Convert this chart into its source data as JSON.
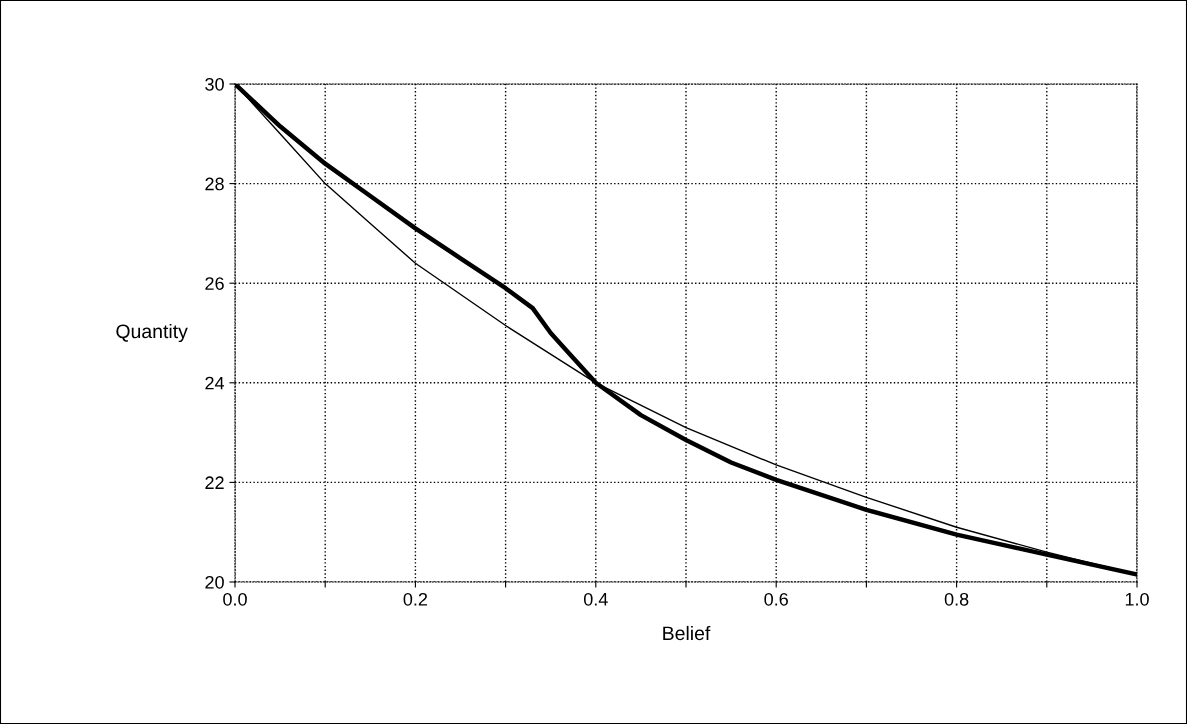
{
  "chart_data": {
    "type": "line",
    "xlabel": "Belief",
    "ylabel": "Quantity",
    "xlim": [
      0,
      1
    ],
    "ylim": [
      20,
      30
    ],
    "xticks": [
      {
        "value": 0,
        "label": "0.0"
      },
      {
        "value": 0.1,
        "label": null
      },
      {
        "value": 0.2,
        "label": "0.2"
      },
      {
        "value": 0.3,
        "label": null
      },
      {
        "value": 0.4,
        "label": "0.4"
      },
      {
        "value": 0.5,
        "label": null
      },
      {
        "value": 0.6,
        "label": "0.6"
      },
      {
        "value": 0.7,
        "label": null
      },
      {
        "value": 0.8,
        "label": "0.8"
      },
      {
        "value": 0.9,
        "label": null
      },
      {
        "value": 1,
        "label": "1.0"
      }
    ],
    "yticks": [
      20,
      22,
      24,
      26,
      28,
      30
    ],
    "grid": true,
    "marker": "none",
    "line_style": "solid",
    "series": [
      {
        "color": "#000000",
        "x": [
          0,
          0.05,
          0.1,
          0.15,
          0.2,
          0.25,
          0.3,
          0.33,
          0.35,
          0.37,
          0.4,
          0.45,
          0.5,
          0.55,
          0.6,
          0.7,
          0.8,
          0.9,
          1.0
        ],
        "values": [
          30,
          29.15,
          28.4,
          27.75,
          27.1,
          26.5,
          25.9,
          25.5,
          25.0,
          24.6,
          24.0,
          23.35,
          22.85,
          22.4,
          22.05,
          21.45,
          20.95,
          20.55,
          20.15
        ]
      },
      {
        "color": "#000000",
        "x": [
          0,
          0.05,
          0.1,
          0.15,
          0.2,
          0.3,
          0.4,
          0.5,
          0.6,
          0.7,
          0.8,
          0.9,
          1.0
        ],
        "values": [
          30,
          29.0,
          28.0,
          27.2,
          26.4,
          25.15,
          24.0,
          23.1,
          22.35,
          21.7,
          21.1,
          20.6,
          20.15
        ]
      }
    ]
  }
}
